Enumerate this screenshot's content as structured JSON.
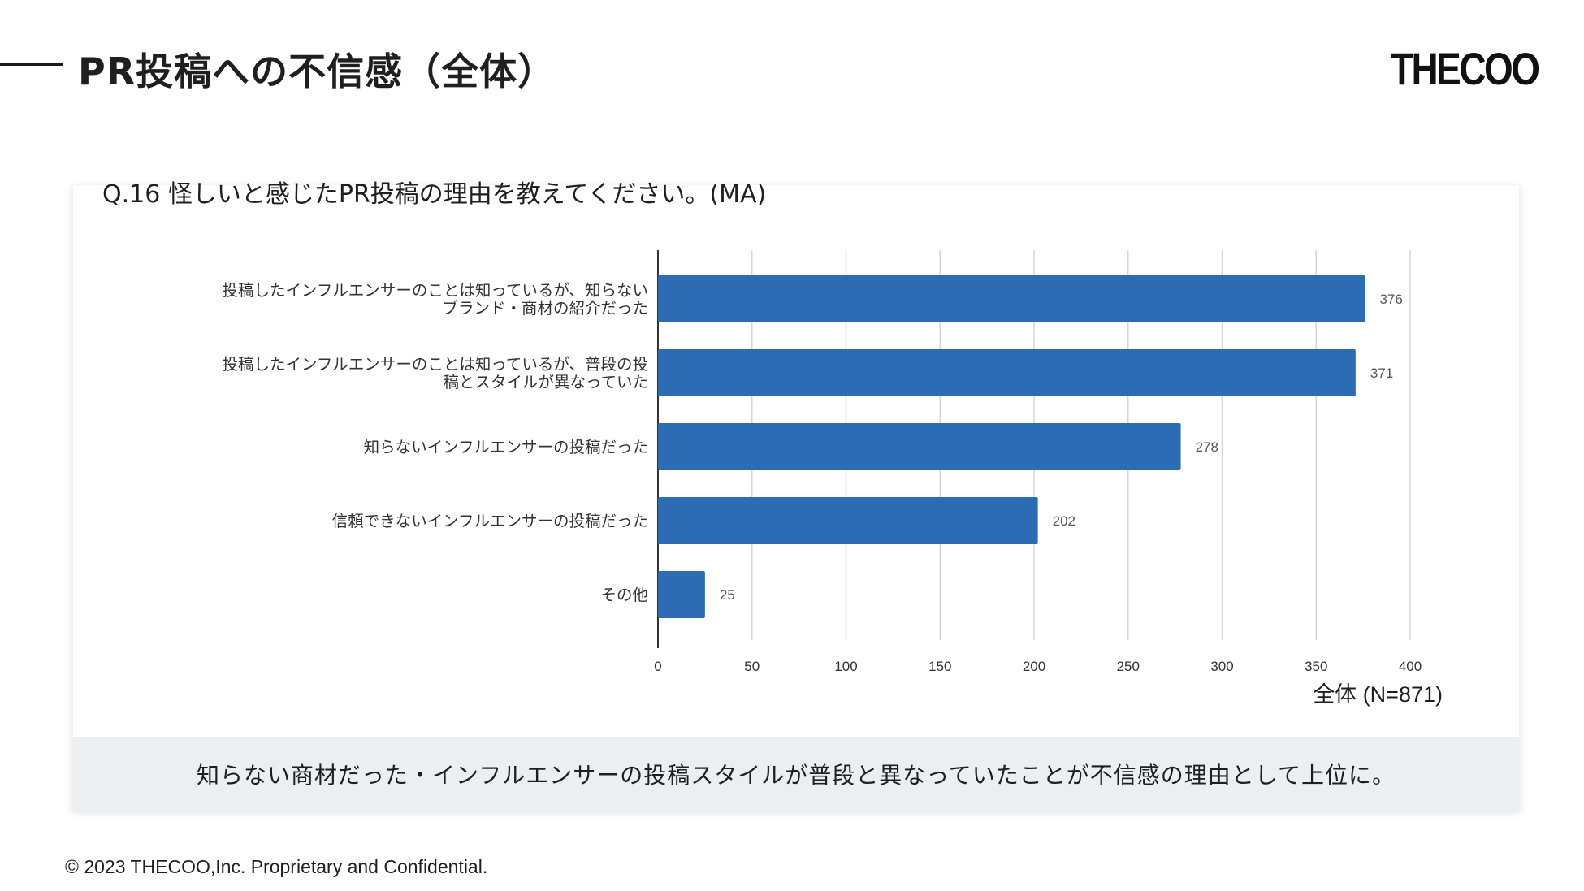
{
  "header": {
    "title": "PR投稿への不信感（全体）",
    "logo_text": "THECOO"
  },
  "question": "Q.16 怪しいと感じたPR投稿の理由を教えてください。(MA)",
  "summary": "知らない商材だった・インフルエンサーの投稿スタイルが普段と異なっていたことが不信感の理由として上位に。",
  "footer": "© 2023 THECOO,Inc. Proprietary and Confidential.",
  "colors": {
    "bar": "#2b6cb5",
    "grid": "#d6d6d6",
    "summary_bg": "#eceff1"
  },
  "chart_data": {
    "type": "bar",
    "orientation": "horizontal",
    "categories": [
      [
        "投稿したインフルエンサーのことは知っているが、知らない",
        "ブランド・商材の紹介だった"
      ],
      [
        "投稿したインフルエンサーのことは知っているが、普段の投",
        "稿とスタイルが異なっていた"
      ],
      [
        "知らないインフルエンサーの投稿だった"
      ],
      [
        "信頼できないインフルエンサーの投稿だった"
      ],
      [
        "その他"
      ]
    ],
    "series": [
      {
        "name": "全体 (N=871)",
        "values": [
          376,
          371,
          278,
          202,
          25
        ]
      }
    ],
    "xlim": [
      0,
      400
    ],
    "xticks": [
      0,
      50,
      100,
      150,
      200,
      250,
      300,
      350,
      400
    ],
    "grid": true,
    "legend_position": "bottom-right"
  }
}
